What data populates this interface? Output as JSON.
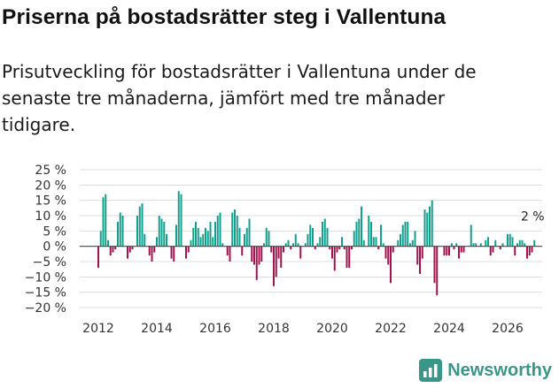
{
  "title": "Priserna på bostadsrätter steg i Vallentuna",
  "subtitle": "Prisutveckling för bostadsrätter i Vallentuna under de senaste tre månaderna, jämfört med tre månader tidigare.",
  "brand": {
    "name": "Newsworthy",
    "icon": "newsworthy-logo-icon"
  },
  "colors": {
    "positive": "#139f8d",
    "negative": "#a0134e",
    "grid": "#dddddd",
    "zero": "#444444",
    "brand": "#3a9688"
  },
  "chart_data": {
    "type": "bar",
    "title": "Priserna på bostadsrätter steg i Vallentuna",
    "xlabel": "",
    "ylabel": "",
    "unit": "%",
    "ylim": [
      -20,
      25
    ],
    "yticks": [
      25,
      20,
      15,
      10,
      5,
      0,
      -5,
      -10,
      -15,
      -20
    ],
    "ytick_labels": [
      "25 %",
      "20 %",
      "15 %",
      "10 %",
      "5 %",
      "0 %",
      "−5 %",
      "−10 %",
      "−15 %",
      "−20 %"
    ],
    "xticks": [
      "2012",
      "2014",
      "2016",
      "2018",
      "2020",
      "2022",
      "2024",
      "2026"
    ],
    "x_start": "2012-01",
    "last_label": "2 %",
    "series": [
      {
        "name": "Prisutveckling",
        "values": [
          -7,
          5,
          16,
          17,
          2,
          -3,
          -2,
          -1,
          8,
          11,
          10,
          0,
          -4,
          -2,
          -1,
          0,
          10,
          13,
          14,
          4,
          0,
          -3,
          -5,
          -2,
          3,
          10,
          9,
          8,
          4,
          0,
          -4,
          -5,
          7,
          18,
          17,
          0,
          -4,
          -2,
          2,
          6,
          8,
          6,
          3,
          4,
          6,
          5,
          8,
          3,
          8,
          10,
          11,
          1,
          0,
          -3,
          -5,
          11,
          12,
          10,
          6,
          -3,
          4,
          6,
          9,
          -5,
          -6,
          -11,
          -6,
          -5,
          1,
          6,
          5,
          -2,
          -13,
          -10,
          -4,
          -7,
          -2,
          1,
          2,
          -1,
          1,
          4,
          1,
          -4,
          0,
          1,
          4,
          7,
          6,
          -1,
          1,
          3,
          8,
          9,
          6,
          -1,
          -4,
          -8,
          -2,
          -1,
          3,
          -1,
          -7,
          -7,
          -1,
          5,
          8,
          9,
          13,
          2,
          0,
          10,
          8,
          3,
          3,
          -1,
          7,
          1,
          -4,
          -6,
          -12,
          -2,
          0,
          2,
          4,
          7,
          8,
          8,
          1,
          2,
          5,
          -6,
          -9,
          -4,
          12,
          11,
          13,
          15,
          -12,
          -16,
          0,
          0,
          -3,
          -3,
          -3,
          1,
          -1,
          1,
          -4,
          -2,
          -2,
          0,
          0,
          7,
          1,
          1,
          0,
          1,
          0,
          2,
          3,
          -3,
          -2,
          2,
          0,
          -1,
          1,
          0,
          4,
          4,
          3,
          -3,
          1,
          2,
          2,
          1,
          -4,
          -3,
          -2,
          2
        ]
      }
    ]
  }
}
